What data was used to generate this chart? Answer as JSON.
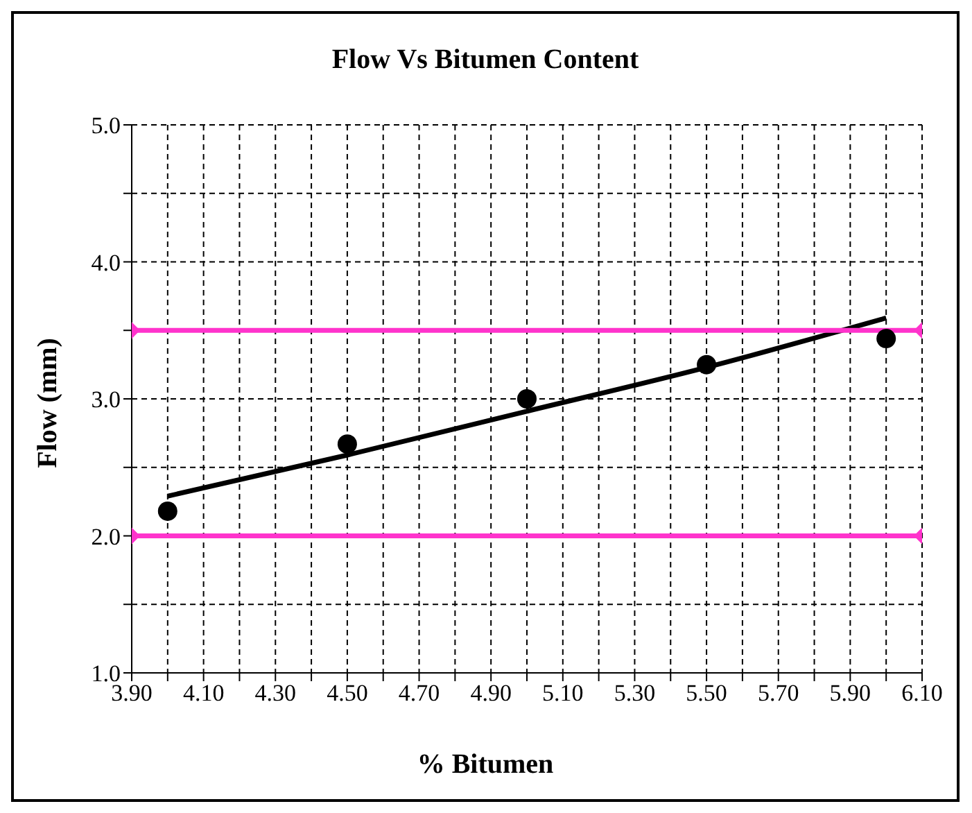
{
  "chart_data": {
    "type": "scatter",
    "title": "Flow Vs Bitumen Content",
    "xlabel": "% Bitumen",
    "ylabel": "Flow (mm)",
    "series": [
      {
        "color": "#000000",
        "x": [
          4.0,
          4.5,
          5.0,
          5.5,
          6.0
        ],
        "values": [
          2.18,
          2.67,
          3.0,
          3.25,
          3.44
        ],
        "marker": "circle"
      },
      {
        "type": "line",
        "color": "#000000",
        "x": [
          4.0,
          4.5,
          5.0,
          5.5,
          6.0
        ],
        "values": [
          2.29,
          2.59,
          2.91,
          3.23,
          3.59
        ],
        "marker": "none"
      },
      {
        "type": "line",
        "color": "#ff33cc",
        "x": [
          3.9,
          6.1
        ],
        "values": [
          3.5,
          3.5
        ],
        "marker": "diamond"
      },
      {
        "type": "line",
        "color": "#ff33cc",
        "x": [
          3.9,
          6.1
        ],
        "values": [
          2.0,
          2.0
        ],
        "marker": "diamond"
      }
    ],
    "xlim": [
      3.9,
      6.1
    ],
    "xticks": [
      {
        "value": 3.9,
        "label": "3.90"
      },
      {
        "value": 4.0,
        "label": null
      },
      {
        "value": 4.1,
        "label": "4.10"
      },
      {
        "value": 4.2,
        "label": null
      },
      {
        "value": 4.3,
        "label": "4.30"
      },
      {
        "value": 4.4,
        "label": null
      },
      {
        "value": 4.5,
        "label": "4.50"
      },
      {
        "value": 4.6,
        "label": null
      },
      {
        "value": 4.7,
        "label": "4.70"
      },
      {
        "value": 4.8,
        "label": null
      },
      {
        "value": 4.9,
        "label": "4.90"
      },
      {
        "value": 5.0,
        "label": null
      },
      {
        "value": 5.1,
        "label": "5.10"
      },
      {
        "value": 5.2,
        "label": null
      },
      {
        "value": 5.3,
        "label": "5.30"
      },
      {
        "value": 5.4,
        "label": null
      },
      {
        "value": 5.5,
        "label": "5.50"
      },
      {
        "value": 5.6,
        "label": null
      },
      {
        "value": 5.7,
        "label": "5.70"
      },
      {
        "value": 5.8,
        "label": null
      },
      {
        "value": 5.9,
        "label": "5.90"
      },
      {
        "value": 6.0,
        "label": null
      },
      {
        "value": 6.1,
        "label": "6.10"
      }
    ],
    "ylim": [
      1.0,
      5.0
    ],
    "yticks": [
      {
        "value": 1.0,
        "label": "1.0"
      },
      {
        "value": 1.5,
        "label": null
      },
      {
        "value": 2.0,
        "label": "2.0"
      },
      {
        "value": 2.5,
        "label": null
      },
      {
        "value": 3.0,
        "label": "3.0"
      },
      {
        "value": 3.5,
        "label": null
      },
      {
        "value": 4.0,
        "label": "4.0"
      },
      {
        "value": 4.5,
        "label": null
      },
      {
        "value": 5.0,
        "label": "5.0"
      }
    ],
    "grid": true
  }
}
